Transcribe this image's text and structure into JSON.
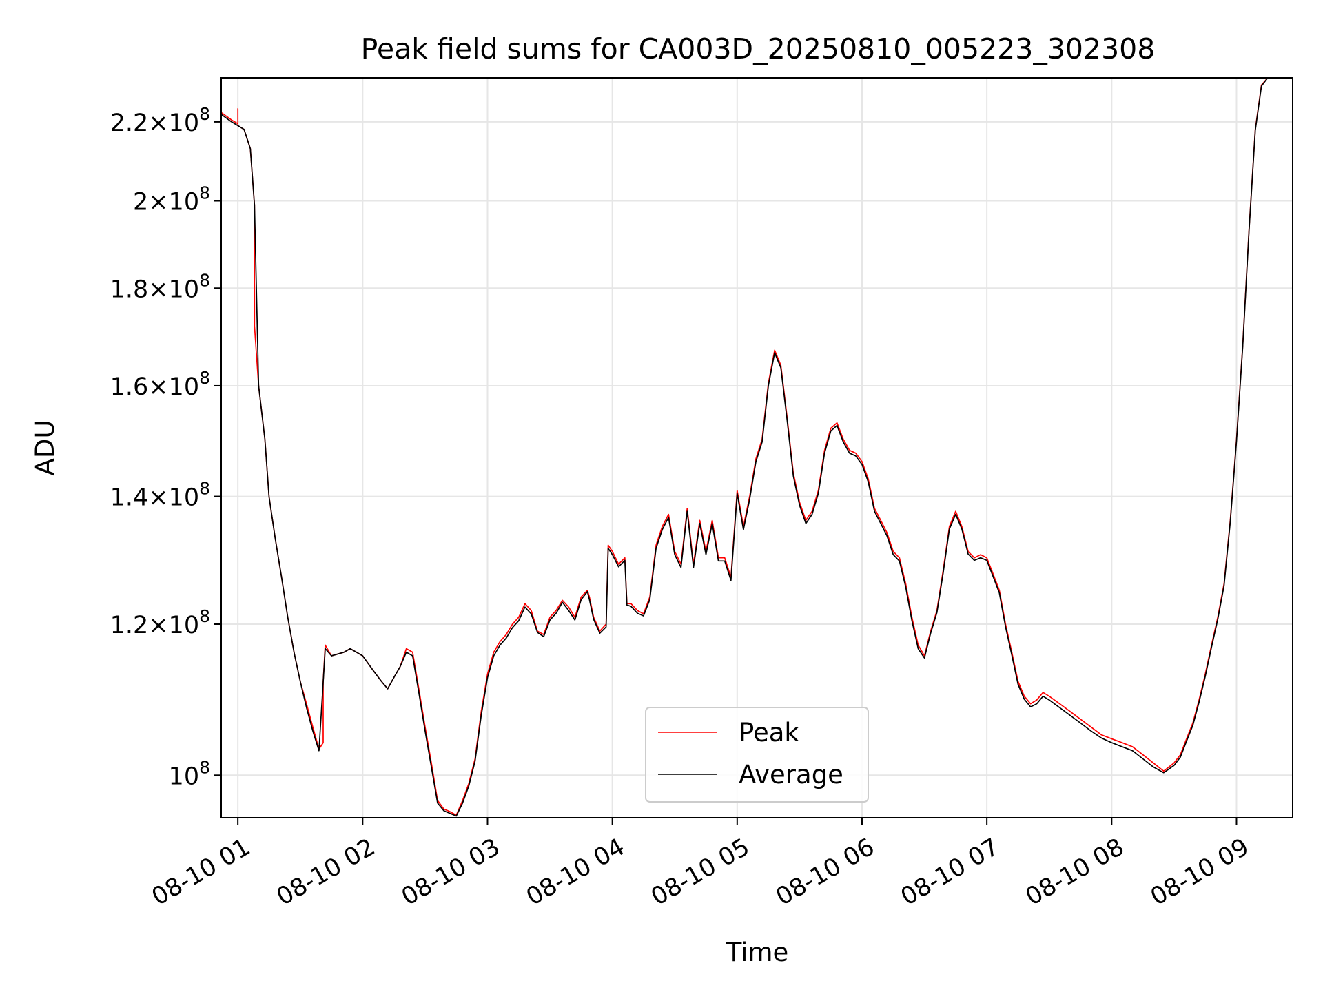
{
  "chart_data": {
    "type": "line",
    "title": "Peak field sums for CA003D_20250810_005223_302308",
    "xlabel": "Time",
    "ylabel": "ADU",
    "yscale": "log",
    "xlim": [
      "2025-08-10 00:52",
      "2025-08-10 09:27"
    ],
    "ylim": [
      95000000,
      232000000
    ],
    "grid": true,
    "legend_position": "bottom-center",
    "x_ticks": [
      "2025-08-10 01:00",
      "2025-08-10 02:00",
      "2025-08-10 03:00",
      "2025-08-10 04:00",
      "2025-08-10 05:00",
      "2025-08-10 06:00",
      "2025-08-10 07:00",
      "2025-08-10 08:00",
      "2025-08-10 09:00"
    ],
    "x_tick_labels": [
      "08-10 01",
      "08-10 02",
      "08-10 03",
      "08-10 04",
      "08-10 05",
      "08-10 06",
      "08-10 07",
      "08-10 08",
      "08-10 09"
    ],
    "y_ticks": [
      {
        "value": 100000000,
        "mantissa": "",
        "exponent": "8"
      },
      {
        "value": 120000000,
        "mantissa": "1.2",
        "exponent": "8"
      },
      {
        "value": 140000000,
        "mantissa": "1.4",
        "exponent": "8"
      },
      {
        "value": 160000000,
        "mantissa": "1.6",
        "exponent": "8"
      },
      {
        "value": 180000000,
        "mantissa": "1.8",
        "exponent": "8"
      },
      {
        "value": 200000000,
        "mantissa": "2",
        "exponent": "8"
      },
      {
        "value": 220000000,
        "mantissa": "2.2",
        "exponent": "8"
      }
    ],
    "series": [
      {
        "name": "Peak",
        "color": "#ff0000",
        "x": [
          "2025-08-10 00:52",
          "2025-08-10 00:57",
          "2025-08-10 01:00",
          "2025-08-10 01:00",
          "2025-08-10 01:00",
          "2025-08-10 01:03",
          "2025-08-10 01:06",
          "2025-08-10 01:08",
          "2025-08-10 01:08",
          "2025-08-10 01:08",
          "2025-08-10 01:10",
          "2025-08-10 01:13",
          "2025-08-10 01:15",
          "2025-08-10 01:18",
          "2025-08-10 01:21",
          "2025-08-10 01:24",
          "2025-08-10 01:27",
          "2025-08-10 01:30",
          "2025-08-10 01:33",
          "2025-08-10 01:36",
          "2025-08-10 01:39",
          "2025-08-10 01:41",
          "2025-08-10 01:41",
          "2025-08-10 01:41",
          "2025-08-10 01:42",
          "2025-08-10 01:45",
          "2025-08-10 01:51",
          "2025-08-10 01:54",
          "2025-08-10 01:57",
          "2025-08-10 02:00",
          "2025-08-10 02:05",
          "2025-08-10 02:09",
          "2025-08-10 02:12",
          "2025-08-10 02:15",
          "2025-08-10 02:18",
          "2025-08-10 02:21",
          "2025-08-10 02:24",
          "2025-08-10 02:27",
          "2025-08-10 02:30",
          "2025-08-10 02:33",
          "2025-08-10 02:36",
          "2025-08-10 02:39",
          "2025-08-10 02:42",
          "2025-08-10 02:45",
          "2025-08-10 02:48",
          "2025-08-10 02:51",
          "2025-08-10 02:54",
          "2025-08-10 02:57",
          "2025-08-10 03:00",
          "2025-08-10 03:03",
          "2025-08-10 03:06",
          "2025-08-10 03:09",
          "2025-08-10 03:12",
          "2025-08-10 03:15",
          "2025-08-10 03:18",
          "2025-08-10 03:21",
          "2025-08-10 03:24",
          "2025-08-10 03:27",
          "2025-08-10 03:30",
          "2025-08-10 03:33",
          "2025-08-10 03:36",
          "2025-08-10 03:39",
          "2025-08-10 03:42",
          "2025-08-10 03:45",
          "2025-08-10 03:48",
          "2025-08-10 03:49",
          "2025-08-10 03:51",
          "2025-08-10 03:54",
          "2025-08-10 03:57",
          "2025-08-10 03:58",
          "2025-08-10 04:00",
          "2025-08-10 04:03",
          "2025-08-10 04:06",
          "2025-08-10 04:07",
          "2025-08-10 04:09",
          "2025-08-10 04:12",
          "2025-08-10 04:15",
          "2025-08-10 04:18",
          "2025-08-10 04:21",
          "2025-08-10 04:24",
          "2025-08-10 04:27",
          "2025-08-10 04:30",
          "2025-08-10 04:33",
          "2025-08-10 04:36",
          "2025-08-10 04:39",
          "2025-08-10 04:42",
          "2025-08-10 04:45",
          "2025-08-10 04:48",
          "2025-08-10 04:51",
          "2025-08-10 04:54",
          "2025-08-10 04:57",
          "2025-08-10 05:00",
          "2025-08-10 05:03",
          "2025-08-10 05:06",
          "2025-08-10 05:09",
          "2025-08-10 05:12",
          "2025-08-10 05:15",
          "2025-08-10 05:18",
          "2025-08-10 05:21",
          "2025-08-10 05:24",
          "2025-08-10 05:27",
          "2025-08-10 05:30",
          "2025-08-10 05:33",
          "2025-08-10 05:36",
          "2025-08-10 05:39",
          "2025-08-10 05:42",
          "2025-08-10 05:45",
          "2025-08-10 05:48",
          "2025-08-10 05:51",
          "2025-08-10 05:54",
          "2025-08-10 05:57",
          "2025-08-10 06:00",
          "2025-08-10 06:03",
          "2025-08-10 06:06",
          "2025-08-10 06:09",
          "2025-08-10 06:12",
          "2025-08-10 06:15",
          "2025-08-10 06:18",
          "2025-08-10 06:21",
          "2025-08-10 06:24",
          "2025-08-10 06:27",
          "2025-08-10 06:30",
          "2025-08-10 06:33",
          "2025-08-10 06:36",
          "2025-08-10 06:39",
          "2025-08-10 06:42",
          "2025-08-10 06:45",
          "2025-08-10 06:48",
          "2025-08-10 06:51",
          "2025-08-10 06:54",
          "2025-08-10 06:57",
          "2025-08-10 07:00",
          "2025-08-10 07:03",
          "2025-08-10 07:06",
          "2025-08-10 07:09",
          "2025-08-10 07:12",
          "2025-08-10 07:15",
          "2025-08-10 07:18",
          "2025-08-10 07:21",
          "2025-08-10 07:24",
          "2025-08-10 07:27",
          "2025-08-10 07:30",
          "2025-08-10 07:35",
          "2025-08-10 07:40",
          "2025-08-10 07:45",
          "2025-08-10 07:50",
          "2025-08-10 07:55",
          "2025-08-10 08:00",
          "2025-08-10 08:05",
          "2025-08-10 08:10",
          "2025-08-10 08:15",
          "2025-08-10 08:20",
          "2025-08-10 08:25",
          "2025-08-10 08:30",
          "2025-08-10 08:33",
          "2025-08-10 08:36",
          "2025-08-10 08:39",
          "2025-08-10 08:42",
          "2025-08-10 08:45",
          "2025-08-10 08:48",
          "2025-08-10 08:51",
          "2025-08-10 08:54",
          "2025-08-10 08:57",
          "2025-08-10 09:00",
          "2025-08-10 09:03",
          "2025-08-10 09:06",
          "2025-08-10 09:09",
          "2025-08-10 09:12",
          "2025-08-10 09:15"
        ],
        "values": [
          222500000,
          220500000,
          219500000,
          223500000,
          219000000,
          218000000,
          213000000,
          199000000,
          184000000,
          172000000,
          160000000,
          150000000,
          140000000,
          133000000,
          127000000,
          121000000,
          116000000,
          112000000,
          109000000,
          106000000,
          103200000,
          104000000,
          106000000,
          112000000,
          117000000,
          115500000,
          116000000,
          116500000,
          116000000,
          115500000,
          113500000,
          112000000,
          111000000,
          112500000,
          114000000,
          116500000,
          116000000,
          111000000,
          106000000,
          101500000,
          97000000,
          96000000,
          95700000,
          95300000,
          97000000,
          99000000,
          102000000,
          108000000,
          113000000,
          116000000,
          117500000,
          118500000,
          120000000,
          121000000,
          123000000,
          122000000,
          119000000,
          118500000,
          121000000,
          122000000,
          123500000,
          122500000,
          121000000,
          124000000,
          125000000,
          124000000,
          121000000,
          119000000,
          120000000,
          132000000,
          131000000,
          129000000,
          130000000,
          123000000,
          123000000,
          122000000,
          121500000,
          124000000,
          132000000,
          135000000,
          137000000,
          131000000,
          129000000,
          138000000,
          129000000,
          136000000,
          131000000,
          136000000,
          130000000,
          130000000,
          127000000,
          141000000,
          135000000,
          140000000,
          146500000,
          150000000,
          160500000,
          167000000,
          164000000,
          154000000,
          144000000,
          139000000,
          136000000,
          137500000,
          141000000,
          148000000,
          152000000,
          153000000,
          150000000,
          148000000,
          147500000,
          146000000,
          143000000,
          138000000,
          136000000,
          134000000,
          131000000,
          130000000,
          126000000,
          121000000,
          117000000,
          115500000,
          119000000,
          122000000,
          128000000,
          135000000,
          137500000,
          135000000,
          131000000,
          130000000,
          130500000,
          130000000,
          127500000,
          125000000,
          120000000,
          116000000,
          112000000,
          110000000,
          109000000,
          109500000,
          110500000,
          110000000,
          109000000,
          108000000,
          107000000,
          106000000,
          105000000,
          104500000,
          104000000,
          103500000,
          102500000,
          101500000,
          100500000,
          101500000,
          102500000,
          104500000,
          106500000,
          109500000,
          113000000,
          117000000,
          121000000,
          126000000,
          136000000,
          150000000,
          168000000,
          193000000,
          218000000,
          230000000,
          232000000
        ]
      },
      {
        "name": "Average",
        "color": "#000000",
        "x": [
          "2025-08-10 00:52",
          "2025-08-10 00:57",
          "2025-08-10 01:00",
          "2025-08-10 01:03",
          "2025-08-10 01:06",
          "2025-08-10 01:08",
          "2025-08-10 01:10",
          "2025-08-10 01:13",
          "2025-08-10 01:15",
          "2025-08-10 01:18",
          "2025-08-10 01:21",
          "2025-08-10 01:24",
          "2025-08-10 01:27",
          "2025-08-10 01:30",
          "2025-08-10 01:33",
          "2025-08-10 01:36",
          "2025-08-10 01:39",
          "2025-08-10 01:42",
          "2025-08-10 01:45",
          "2025-08-10 01:51",
          "2025-08-10 01:54",
          "2025-08-10 01:57",
          "2025-08-10 02:00",
          "2025-08-10 02:05",
          "2025-08-10 02:09",
          "2025-08-10 02:12",
          "2025-08-10 02:15",
          "2025-08-10 02:18",
          "2025-08-10 02:21",
          "2025-08-10 02:24",
          "2025-08-10 02:27",
          "2025-08-10 02:30",
          "2025-08-10 02:33",
          "2025-08-10 02:36",
          "2025-08-10 02:39",
          "2025-08-10 02:42",
          "2025-08-10 02:45",
          "2025-08-10 02:48",
          "2025-08-10 02:51",
          "2025-08-10 02:54",
          "2025-08-10 02:57",
          "2025-08-10 03:00",
          "2025-08-10 03:03",
          "2025-08-10 03:06",
          "2025-08-10 03:09",
          "2025-08-10 03:12",
          "2025-08-10 03:15",
          "2025-08-10 03:18",
          "2025-08-10 03:21",
          "2025-08-10 03:24",
          "2025-08-10 03:27",
          "2025-08-10 03:30",
          "2025-08-10 03:33",
          "2025-08-10 03:36",
          "2025-08-10 03:39",
          "2025-08-10 03:42",
          "2025-08-10 03:45",
          "2025-08-10 03:48",
          "2025-08-10 03:49",
          "2025-08-10 03:51",
          "2025-08-10 03:54",
          "2025-08-10 03:57",
          "2025-08-10 03:58",
          "2025-08-10 04:00",
          "2025-08-10 04:03",
          "2025-08-10 04:06",
          "2025-08-10 04:07",
          "2025-08-10 04:09",
          "2025-08-10 04:12",
          "2025-08-10 04:15",
          "2025-08-10 04:18",
          "2025-08-10 04:21",
          "2025-08-10 04:24",
          "2025-08-10 04:27",
          "2025-08-10 04:30",
          "2025-08-10 04:33",
          "2025-08-10 04:36",
          "2025-08-10 04:39",
          "2025-08-10 04:42",
          "2025-08-10 04:45",
          "2025-08-10 04:48",
          "2025-08-10 04:51",
          "2025-08-10 04:54",
          "2025-08-10 04:57",
          "2025-08-10 05:00",
          "2025-08-10 05:03",
          "2025-08-10 05:06",
          "2025-08-10 05:09",
          "2025-08-10 05:12",
          "2025-08-10 05:15",
          "2025-08-10 05:18",
          "2025-08-10 05:21",
          "2025-08-10 05:24",
          "2025-08-10 05:27",
          "2025-08-10 05:30",
          "2025-08-10 05:33",
          "2025-08-10 05:36",
          "2025-08-10 05:39",
          "2025-08-10 05:42",
          "2025-08-10 05:45",
          "2025-08-10 05:48",
          "2025-08-10 05:51",
          "2025-08-10 05:54",
          "2025-08-10 05:57",
          "2025-08-10 06:00",
          "2025-08-10 06:03",
          "2025-08-10 06:06",
          "2025-08-10 06:09",
          "2025-08-10 06:12",
          "2025-08-10 06:15",
          "2025-08-10 06:18",
          "2025-08-10 06:21",
          "2025-08-10 06:24",
          "2025-08-10 06:27",
          "2025-08-10 06:30",
          "2025-08-10 06:33",
          "2025-08-10 06:36",
          "2025-08-10 06:39",
          "2025-08-10 06:42",
          "2025-08-10 06:45",
          "2025-08-10 06:48",
          "2025-08-10 06:51",
          "2025-08-10 06:54",
          "2025-08-10 06:57",
          "2025-08-10 07:00",
          "2025-08-10 07:03",
          "2025-08-10 07:06",
          "2025-08-10 07:09",
          "2025-08-10 07:12",
          "2025-08-10 07:15",
          "2025-08-10 07:18",
          "2025-08-10 07:21",
          "2025-08-10 07:24",
          "2025-08-10 07:27",
          "2025-08-10 07:30",
          "2025-08-10 07:35",
          "2025-08-10 07:40",
          "2025-08-10 07:45",
          "2025-08-10 07:50",
          "2025-08-10 07:55",
          "2025-08-10 08:00",
          "2025-08-10 08:05",
          "2025-08-10 08:10",
          "2025-08-10 08:15",
          "2025-08-10 08:20",
          "2025-08-10 08:25",
          "2025-08-10 08:30",
          "2025-08-10 08:33",
          "2025-08-10 08:36",
          "2025-08-10 08:39",
          "2025-08-10 08:42",
          "2025-08-10 08:45",
          "2025-08-10 08:48",
          "2025-08-10 08:51",
          "2025-08-10 08:54",
          "2025-08-10 08:57",
          "2025-08-10 09:00",
          "2025-08-10 09:03",
          "2025-08-10 09:06",
          "2025-08-10 09:09",
          "2025-08-10 09:12",
          "2025-08-10 09:15"
        ],
        "values": [
          222000000,
          220000000,
          219000000,
          218000000,
          213000000,
          199000000,
          160000000,
          150000000,
          140000000,
          133000000,
          127000000,
          121000000,
          116000000,
          112000000,
          108500000,
          105500000,
          103000000,
          116500000,
          115500000,
          116000000,
          116500000,
          116000000,
          115500000,
          113500000,
          112000000,
          111000000,
          112500000,
          114000000,
          116000000,
          115500000,
          110500000,
          105500000,
          101000000,
          96700000,
          95800000,
          95500000,
          95200000,
          96700000,
          98700000,
          101700000,
          107500000,
          112500000,
          115500000,
          117000000,
          118000000,
          119500000,
          120500000,
          122500000,
          121500000,
          118800000,
          118200000,
          120600000,
          121600000,
          123200000,
          122000000,
          120600000,
          123600000,
          124800000,
          123600000,
          120700000,
          118700000,
          119600000,
          131500000,
          130500000,
          128600000,
          129600000,
          122800000,
          122600000,
          121600000,
          121200000,
          123600000,
          131500000,
          134500000,
          136500000,
          130500000,
          128500000,
          137500000,
          128500000,
          135500000,
          130500000,
          135500000,
          129500000,
          129500000,
          126500000,
          140500000,
          134500000,
          139500000,
          146000000,
          149500000,
          160000000,
          166500000,
          163500000,
          153500000,
          143500000,
          138500000,
          135500000,
          137000000,
          140500000,
          147500000,
          151500000,
          152500000,
          149500000,
          147500000,
          147000000,
          145500000,
          142500000,
          137500000,
          135500000,
          133500000,
          130500000,
          129500000,
          125500000,
          120500000,
          116500000,
          115200000,
          118700000,
          121700000,
          127600000,
          134600000,
          137000000,
          134600000,
          130600000,
          129600000,
          130000000,
          129600000,
          127100000,
          124600000,
          119600000,
          115600000,
          111600000,
          109600000,
          108600000,
          109000000,
          110000000,
          109500000,
          108500000,
          107500000,
          106500000,
          105500000,
          104600000,
          104000000,
          103500000,
          103000000,
          102000000,
          101000000,
          100300000,
          101200000,
          102200000,
          104200000,
          106200000,
          109200000,
          112700000,
          116700000,
          120700000,
          125700000,
          135700000,
          149700000,
          167700000,
          192700000,
          217700000,
          229700000,
          232000000
        ]
      }
    ]
  }
}
